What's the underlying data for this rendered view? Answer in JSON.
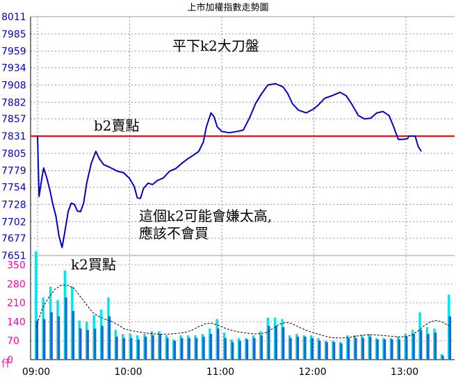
{
  "chart_data": {
    "type": "line",
    "title": "上市加權指數走勢圖",
    "price_axis": {
      "ticks": [
        8011,
        7985,
        7959,
        7934,
        7908,
        7882,
        7857,
        7831,
        7805,
        7779,
        7754,
        7728,
        7702,
        7677,
        7651
      ],
      "ylim": [
        7651,
        8011
      ]
    },
    "volume_axis": {
      "unit": "仟",
      "ticks": [
        350,
        280,
        210,
        140,
        70,
        0
      ],
      "ylim": [
        0,
        385
      ]
    },
    "x_axis": {
      "ticks": [
        "09:00",
        "10:00",
        "11:00",
        "12:00",
        "13:00"
      ],
      "range": [
        "09:00",
        "13:30"
      ]
    },
    "reference_line": {
      "value": 7831,
      "color": "#ff0000"
    },
    "series": [
      {
        "kind": "price",
        "color": "#0000cc",
        "points": [
          [
            "09:00",
            7831
          ],
          [
            "09:01",
            7740
          ],
          [
            "09:03",
            7770
          ],
          [
            "09:04",
            7783
          ],
          [
            "09:06",
            7768
          ],
          [
            "09:08",
            7750
          ],
          [
            "09:10",
            7728
          ],
          [
            "09:12",
            7710
          ],
          [
            "09:14",
            7680
          ],
          [
            "09:16",
            7663
          ],
          [
            "09:18",
            7690
          ],
          [
            "09:20",
            7718
          ],
          [
            "09:22",
            7730
          ],
          [
            "09:24",
            7728
          ],
          [
            "09:26",
            7718
          ],
          [
            "09:28",
            7717
          ],
          [
            "09:30",
            7730
          ],
          [
            "09:32",
            7760
          ],
          [
            "09:35",
            7790
          ],
          [
            "09:38",
            7808
          ],
          [
            "09:40",
            7798
          ],
          [
            "09:43",
            7788
          ],
          [
            "09:47",
            7784
          ],
          [
            "09:52",
            7778
          ],
          [
            "09:56",
            7776
          ],
          [
            "10:00",
            7767
          ],
          [
            "10:03",
            7755
          ],
          [
            "10:05",
            7738
          ],
          [
            "10:07",
            7737
          ],
          [
            "10:09",
            7752
          ],
          [
            "10:12",
            7760
          ],
          [
            "10:15",
            7758
          ],
          [
            "10:18",
            7764
          ],
          [
            "10:22",
            7768
          ],
          [
            "10:26",
            7778
          ],
          [
            "10:30",
            7782
          ],
          [
            "10:34",
            7790
          ],
          [
            "10:38",
            7797
          ],
          [
            "10:42",
            7803
          ],
          [
            "10:45",
            7808
          ],
          [
            "10:48",
            7822
          ],
          [
            "10:50",
            7845
          ],
          [
            "10:53",
            7866
          ],
          [
            "10:55",
            7860
          ],
          [
            "10:57",
            7845
          ],
          [
            "11:00",
            7838
          ],
          [
            "11:05",
            7836
          ],
          [
            "11:10",
            7838
          ],
          [
            "11:14",
            7840
          ],
          [
            "11:18",
            7858
          ],
          [
            "11:22",
            7880
          ],
          [
            "11:26",
            7895
          ],
          [
            "11:30",
            7908
          ],
          [
            "11:35",
            7910
          ],
          [
            "11:40",
            7905
          ],
          [
            "11:43",
            7895
          ],
          [
            "11:46",
            7880
          ],
          [
            "11:50",
            7870
          ],
          [
            "11:55",
            7866
          ],
          [
            "12:00",
            7872
          ],
          [
            "12:03",
            7878
          ],
          [
            "12:07",
            7888
          ],
          [
            "12:12",
            7892
          ],
          [
            "12:17",
            7897
          ],
          [
            "12:21",
            7892
          ],
          [
            "12:25",
            7878
          ],
          [
            "12:29",
            7862
          ],
          [
            "12:33",
            7857
          ],
          [
            "12:37",
            7858
          ],
          [
            "12:41",
            7866
          ],
          [
            "12:45",
            7868
          ],
          [
            "12:49",
            7862
          ],
          [
            "12:52",
            7845
          ],
          [
            "12:55",
            7826
          ],
          [
            "12:58",
            7826
          ],
          [
            "13:01",
            7827
          ],
          [
            "13:02",
            7831
          ],
          [
            "13:06",
            7831
          ],
          [
            "13:08",
            7815
          ],
          [
            "13:10",
            7808
          ]
        ]
      },
      {
        "kind": "volume",
        "colors": {
          "buy": "#00e5ee",
          "sell": "#1e64d0",
          "ma": "#000000"
        },
        "bars": [
          [
            400,
            145
          ],
          [
            230,
            150
          ],
          [
            270,
            175
          ],
          [
            220,
            160
          ],
          [
            330,
            230
          ],
          [
            270,
            180
          ],
          [
            145,
            115
          ],
          [
            140,
            110
          ],
          [
            165,
            115
          ],
          [
            185,
            125
          ],
          [
            230,
            160
          ],
          [
            110,
            85
          ],
          [
            95,
            80
          ],
          [
            95,
            80
          ],
          [
            90,
            75
          ],
          [
            95,
            85
          ],
          [
            105,
            90
          ],
          [
            105,
            95
          ],
          [
            90,
            80
          ],
          [
            75,
            70
          ],
          [
            90,
            80
          ],
          [
            90,
            80
          ],
          [
            90,
            80
          ],
          [
            95,
            85
          ],
          [
            115,
            95
          ],
          [
            150,
            115
          ],
          [
            100,
            80
          ],
          [
            75,
            65
          ],
          [
            80,
            70
          ],
          [
            80,
            75
          ],
          [
            90,
            80
          ],
          [
            105,
            90
          ],
          [
            155,
            125
          ],
          [
            155,
            125
          ],
          [
            150,
            120
          ],
          [
            90,
            80
          ],
          [
            95,
            85
          ],
          [
            90,
            85
          ],
          [
            90,
            80
          ],
          [
            80,
            70
          ],
          [
            70,
            65
          ],
          [
            70,
            65
          ],
          [
            65,
            60
          ],
          [
            90,
            80
          ],
          [
            90,
            80
          ],
          [
            90,
            80
          ],
          [
            95,
            85
          ],
          [
            80,
            75
          ],
          [
            80,
            75
          ],
          [
            80,
            75
          ],
          [
            85,
            75
          ],
          [
            95,
            85
          ],
          [
            110,
            95
          ],
          [
            175,
            110
          ],
          [
            120,
            95
          ],
          [
            115,
            100
          ],
          [
            20,
            15
          ],
          [
            240,
            160
          ]
        ],
        "ma": [
          120,
          190,
          230,
          260,
          275,
          275,
          265,
          235,
          205,
          175,
          160,
          150,
          142,
          130,
          115,
          108,
          104,
          100,
          97,
          95,
          94,
          94,
          96,
          98,
          102,
          110,
          122,
          132,
          135,
          128,
          118,
          110,
          104,
          100,
          97,
          95,
          96,
          102,
          118,
          132,
          138,
          132,
          120,
          110,
          102,
          95,
          88,
          82,
          80,
          80,
          82,
          86,
          90,
          92,
          92,
          90,
          88,
          86,
          84,
          85,
          90,
          105,
          125,
          140,
          145,
          138,
          125
        ]
      }
    ],
    "annotations": [
      {
        "text": "平下k2大刀盤",
        "anchor": "top-center"
      },
      {
        "text": "b2賣點",
        "anchor": "above-reference-line"
      },
      {
        "text": "這個k2可能會嫌太高,",
        "anchor": "center"
      },
      {
        "text": "應該不會買",
        "anchor": "center"
      },
      {
        "text": "k2買點",
        "anchor": "bottom-left"
      }
    ]
  }
}
